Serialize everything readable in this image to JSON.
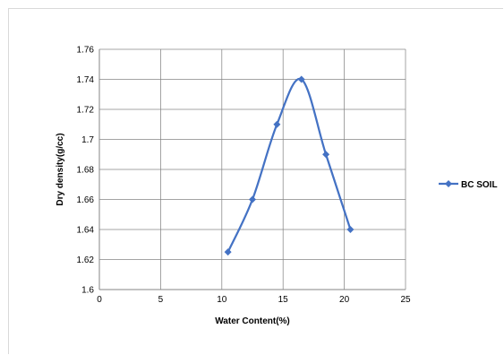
{
  "chart_data": {
    "type": "scatter",
    "mode": "smooth-line-with-markers",
    "xlabel": "Water Content(%)",
    "ylabel": "Dry density(g/cc)",
    "xlim": [
      0,
      25
    ],
    "ylim": [
      1.6,
      1.76
    ],
    "xticks": [
      0,
      5,
      10,
      15,
      20,
      25
    ],
    "yticks": [
      "1.6",
      "1.62",
      "1.64",
      "1.66",
      "1.68",
      "1.7",
      "1.72",
      "1.74",
      "1.76"
    ],
    "grid": true,
    "legend_position": "right",
    "series": [
      {
        "name": "BC SOIL",
        "color": "#4472C4",
        "marker": "diamond",
        "points": [
          {
            "x": 10.5,
            "y": 1.625
          },
          {
            "x": 12.5,
            "y": 1.66
          },
          {
            "x": 14.5,
            "y": 1.71
          },
          {
            "x": 16.5,
            "y": 1.74
          },
          {
            "x": 18.5,
            "y": 1.69
          },
          {
            "x": 20.5,
            "y": 1.64
          }
        ]
      }
    ]
  }
}
